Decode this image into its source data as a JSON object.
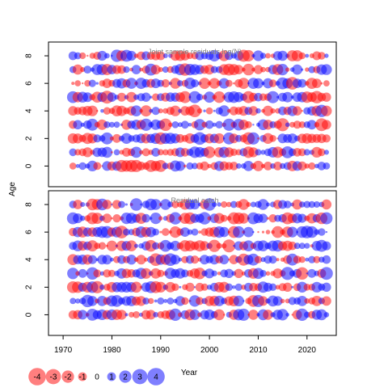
{
  "chart_data": [
    {
      "type": "scatter",
      "title": "Joint sample residuals log(N)",
      "ylabel": "Age",
      "xlim": [
        1967,
        2026
      ],
      "ylim": [
        -1.5,
        9.0
      ],
      "y_ticks": [
        0,
        2,
        4,
        6,
        8
      ],
      "ages": [
        0,
        1,
        2,
        3,
        4,
        5,
        6,
        7,
        8
      ],
      "years": [
        1972,
        2024
      ],
      "seed": 7
    },
    {
      "type": "scatter",
      "title": "Residual catch",
      "ylabel": "",
      "xlim": [
        1967,
        2026
      ],
      "ylim": [
        -1.5,
        9.0
      ],
      "y_ticks": [
        0,
        2,
        4,
        6,
        8
      ],
      "ages": [
        0,
        1,
        2,
        3,
        4,
        5,
        6,
        7,
        8
      ],
      "years": [
        1972,
        2024
      ],
      "seed": 13
    }
  ],
  "x_axis": {
    "label": "Year",
    "ticks": [
      "1970",
      "1980",
      "1990",
      "2000",
      "2010",
      "2020"
    ],
    "tick_values": [
      1970,
      1980,
      1990,
      2000,
      2010,
      2020
    ]
  },
  "y_axis_label": "Age",
  "legend": {
    "entries": [
      "-4",
      "-3",
      "-2",
      "-1",
      "0",
      "1",
      "2",
      "3",
      "4"
    ],
    "values": [
      -4,
      -3,
      -2,
      -1,
      0,
      1,
      2,
      3,
      4
    ]
  },
  "colors": {
    "positive": "#0000ff",
    "negative": "#ff0000",
    "frame": "#000000",
    "title": "#808080"
  }
}
